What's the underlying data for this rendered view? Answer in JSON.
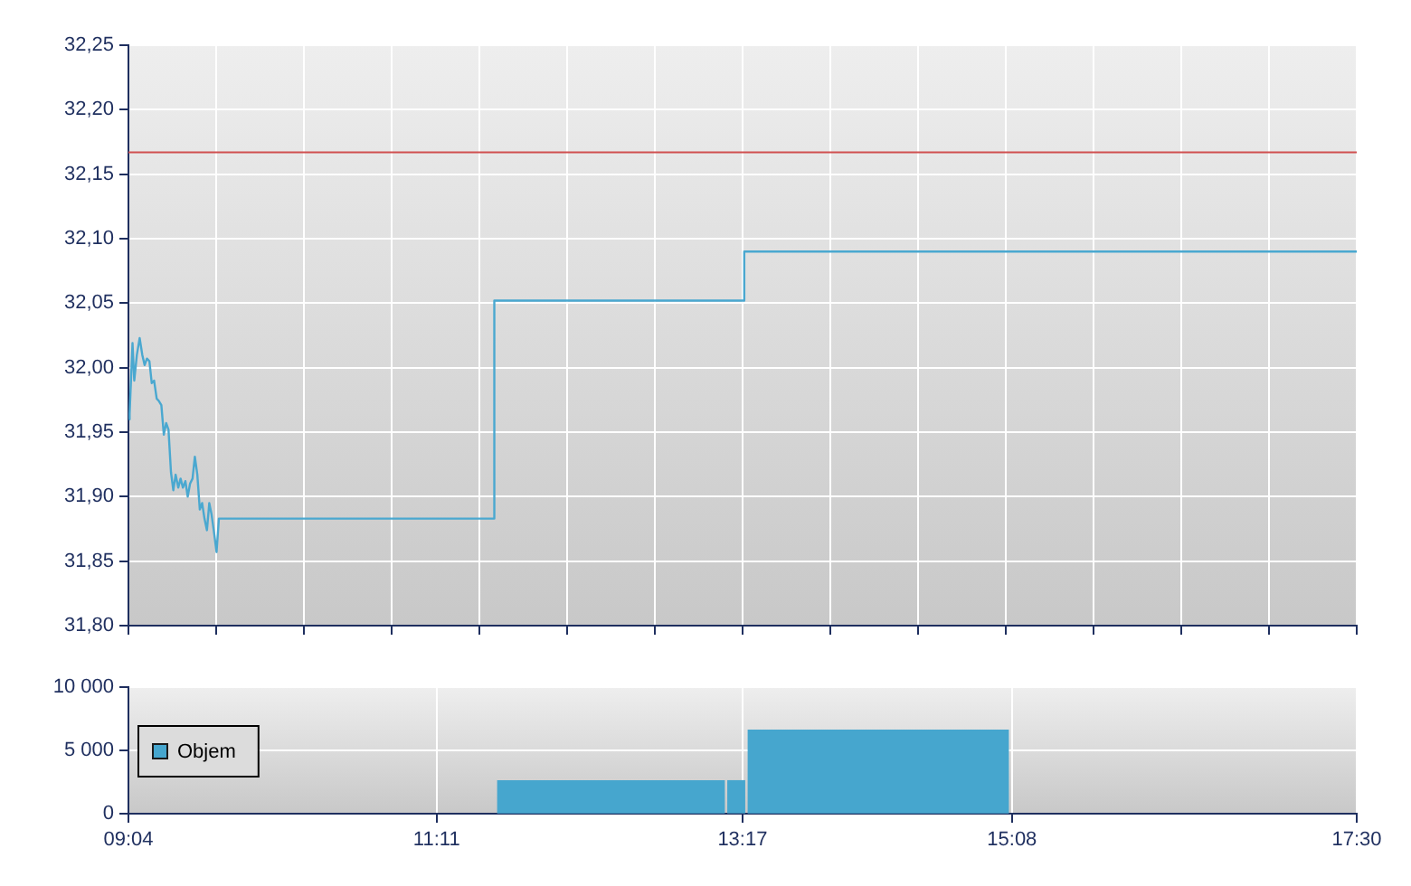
{
  "chart_data": [
    {
      "type": "line",
      "xlim": [
        9.067,
        17.5
      ],
      "xticks": [
        {
          "value": 9.067,
          "label": null
        },
        {
          "value": 9.669,
          "label": null
        },
        {
          "value": 10.271,
          "label": null
        },
        {
          "value": 10.874,
          "label": null
        },
        {
          "value": 11.476,
          "label": null
        },
        {
          "value": 12.079,
          "label": null
        },
        {
          "value": 12.681,
          "label": null
        },
        {
          "value": 13.283,
          "label": null
        },
        {
          "value": 13.886,
          "label": null
        },
        {
          "value": 14.488,
          "label": null
        },
        {
          "value": 15.09,
          "label": null
        },
        {
          "value": 15.693,
          "label": null
        },
        {
          "value": 16.295,
          "label": null
        },
        {
          "value": 16.898,
          "label": null
        },
        {
          "value": 17.5,
          "label": null
        }
      ],
      "ylim": [
        31.8,
        32.25
      ],
      "yticks": [
        {
          "value": 31.8,
          "label": "31,80"
        },
        {
          "value": 31.85,
          "label": "31,85"
        },
        {
          "value": 31.9,
          "label": "31,90"
        },
        {
          "value": 31.95,
          "label": "31,95"
        },
        {
          "value": 32.0,
          "label": "32,00"
        },
        {
          "value": 32.05,
          "label": "32,05"
        },
        {
          "value": 32.1,
          "label": "32,10"
        },
        {
          "value": 32.15,
          "label": "32,15"
        },
        {
          "value": 32.2,
          "label": "32,20"
        },
        {
          "value": 32.25,
          "label": "32,25"
        }
      ],
      "tick_labels": "y",
      "grid": true,
      "series": [
        {
          "color": "#4aa8d0",
          "x": [
            9.07,
            9.075,
            9.095,
            9.107,
            9.125,
            9.144,
            9.162,
            9.178,
            9.194,
            9.211,
            9.227,
            9.243,
            9.261,
            9.277,
            9.293,
            9.31,
            9.326,
            9.342,
            9.359,
            9.375,
            9.391,
            9.409,
            9.425,
            9.441,
            9.458,
            9.474,
            9.49,
            9.507,
            9.523,
            9.54,
            9.557,
            9.573,
            9.589,
            9.606,
            9.622,
            9.638,
            9.656,
            9.672,
            9.688,
            11.579,
            11.579,
            13.295,
            13.295,
            17.5
          ],
          "values": [
            31.96,
            31.964,
            32.019,
            31.99,
            32.01,
            32.023,
            32.01,
            32.002,
            32.007,
            32.005,
            31.988,
            31.99,
            31.976,
            31.974,
            31.971,
            31.948,
            31.957,
            31.952,
            31.919,
            31.905,
            31.917,
            31.907,
            31.914,
            31.907,
            31.912,
            31.9,
            31.91,
            31.914,
            31.931,
            31.917,
            31.89,
            31.895,
            31.883,
            31.874,
            31.895,
            31.886,
            31.871,
            31.857,
            31.883,
            31.883,
            32.052,
            32.052,
            32.09,
            32.09
          ]
        }
      ],
      "ref_lines": [
        {
          "axis": "y",
          "value": 32.167,
          "color": "#d05050"
        }
      ]
    },
    {
      "type": "histogram",
      "xlim": [
        9.067,
        17.5
      ],
      "xticks": [
        {
          "value": 9.067,
          "label": "09:04"
        },
        {
          "value": 11.183,
          "label": "11:11"
        },
        {
          "value": 13.283,
          "label": "13:17"
        },
        {
          "value": 15.133,
          "label": "15:08"
        },
        {
          "value": 17.5,
          "label": "17:30"
        }
      ],
      "ylim": [
        0,
        10000
      ],
      "yticks": [
        0,
        {
          "value": 5000,
          "label": "5 000"
        },
        {
          "value": 10000,
          "label": "10 000"
        }
      ],
      "grid": true,
      "legend": "left",
      "bins": [
        11.59,
        13.17,
        13.31,
        15.12
      ],
      "series": [
        {
          "name": "Objem",
          "color": "#46a6ce",
          "values": [
            2600,
            2600,
            6600
          ]
        }
      ]
    }
  ]
}
